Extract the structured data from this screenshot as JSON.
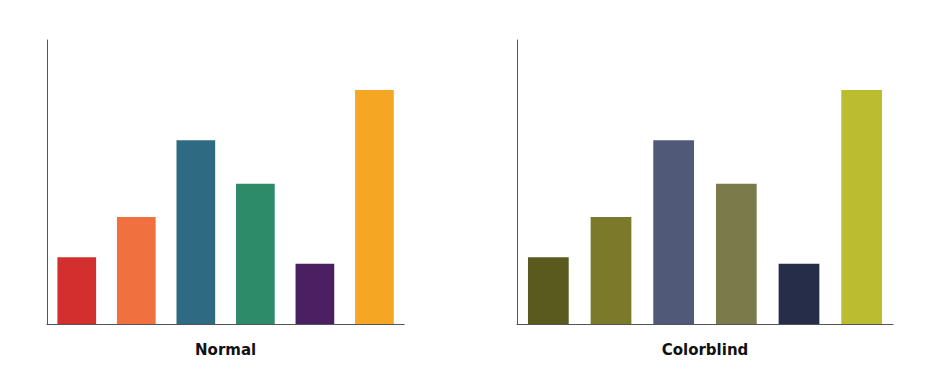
{
  "chart_data": [
    {
      "type": "bar",
      "xlabel": "Normal",
      "categories": [
        null,
        null,
        null,
        null,
        null,
        null
      ],
      "values": [
        2.0,
        3.2,
        5.5,
        4.2,
        1.8,
        7.0
      ],
      "colors": [
        "#d32f2f",
        "#f07040",
        "#2e6b82",
        "#2e8b6a",
        "#4a2060",
        "#f5a623"
      ],
      "ylim": [
        0,
        8.5
      ],
      "grid": false,
      "tick_labels": false
    },
    {
      "type": "bar",
      "xlabel": "Colorblind",
      "categories": [
        null,
        null,
        null,
        null,
        null,
        null
      ],
      "values": [
        2.0,
        3.2,
        5.5,
        4.2,
        1.8,
        7.0
      ],
      "colors": [
        "#5a5a1e",
        "#7a7a2a",
        "#505a78",
        "#7a7a4a",
        "#252d48",
        "#bcbc30"
      ],
      "ylim": [
        0,
        8.5
      ],
      "grid": false,
      "tick_labels": false
    }
  ]
}
